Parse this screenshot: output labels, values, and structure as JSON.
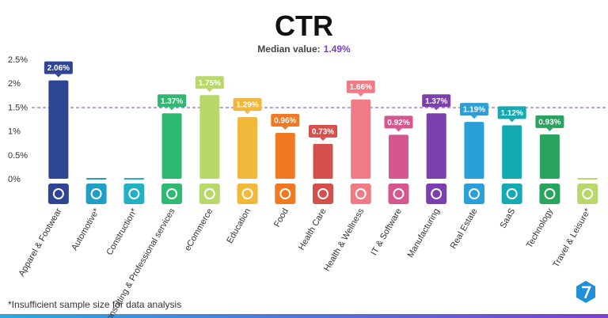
{
  "chart_data": {
    "type": "bar",
    "title": "CTR",
    "median": {
      "label": "Median value:",
      "value": 1.49,
      "value_label": "1.49%"
    },
    "categories": [
      "Apparel & Footwear",
      "Automotive*",
      "Construction*",
      "Consulting & Professional services",
      "eCommerce",
      "Education",
      "Food",
      "Health Care",
      "Health & Wellness",
      "IT & Software",
      "Manufacturing",
      "Real Estate",
      "SaaS",
      "Technology",
      "Travel & Leisure*"
    ],
    "values": [
      2.06,
      null,
      null,
      1.37,
      1.75,
      1.29,
      0.96,
      0.73,
      1.66,
      0.92,
      1.37,
      1.19,
      1.12,
      0.93,
      null
    ],
    "value_labels": [
      "2.06%",
      null,
      null,
      "1.37%",
      "1.75%",
      "1.29%",
      "0.96%",
      "0.73%",
      "1.66%",
      "0.92%",
      "1.37%",
      "1.19%",
      "1.12%",
      "0.93%",
      null
    ],
    "colors": [
      "#2e4593",
      "#1f9fc6",
      "#22b1c4",
      "#2eb872",
      "#b8d86c",
      "#f2b83c",
      "#f07a24",
      "#d4504c",
      "#f07b86",
      "#d6578f",
      "#7b3fae",
      "#2a9fd8",
      "#15a9b2",
      "#29a35e",
      "#b8d86c"
    ],
    "ylim": [
      0,
      2.5
    ],
    "yticks": [
      {
        "value": 0,
        "label": "0%"
      },
      {
        "value": 0.5,
        "label": "0.5%"
      },
      {
        "value": 1,
        "label": "1%"
      },
      {
        "value": 1.5,
        "label": "1.5%"
      },
      {
        "value": 2,
        "label": "2%"
      },
      {
        "value": 2.5,
        "label": "2.5%"
      }
    ],
    "footnote": "*Insufficient sample size for data analysis"
  }
}
